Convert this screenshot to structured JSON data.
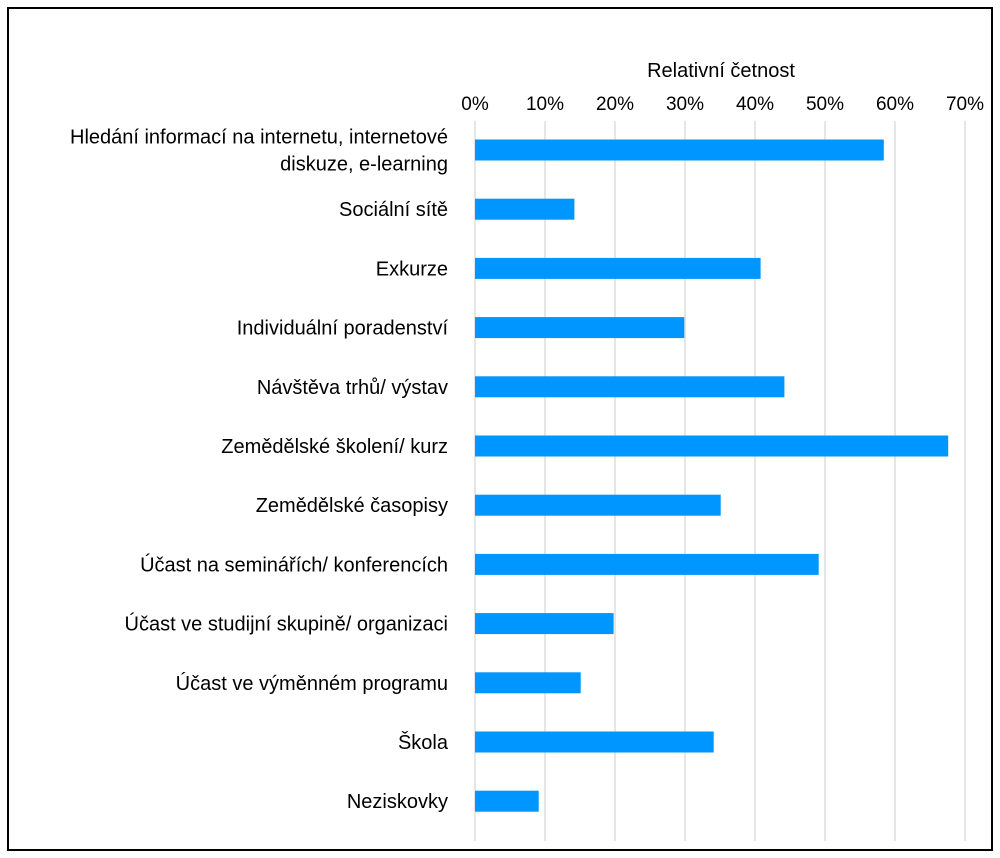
{
  "chart_data": {
    "type": "bar",
    "orientation": "horizontal",
    "title": "",
    "xlabel": "Relativní četnost",
    "ylabel": "",
    "xaxis_position": "top",
    "xlim": [
      0,
      70
    ],
    "x_ticks": [
      0,
      10,
      20,
      30,
      40,
      50,
      60,
      70
    ],
    "x_tick_labels": [
      "0%",
      "10%",
      "20%",
      "30%",
      "40%",
      "50%",
      "60%",
      "70%"
    ],
    "grid": true,
    "legend": "none",
    "bar_color": "#0096ff",
    "grid_color": "#d9d9d9",
    "categories": [
      [
        "Hledání informací na internetu, internetové",
        "diskuze, e-learning"
      ],
      [
        "Sociální sítě"
      ],
      [
        "Exkurze"
      ],
      [
        "Individuální poradenství"
      ],
      [
        "Návštěva trhů/ výstav"
      ],
      [
        "Zemědělské školení/ kurz"
      ],
      [
        "Zemědělské časopisy"
      ],
      [
        "Účast na seminářích/ konferencích"
      ],
      [
        "Účast ve studijní skupině/ organizaci"
      ],
      [
        "Účast ve výměnném programu"
      ],
      [
        "Škola"
      ],
      [
        "Neziskovky"
      ]
    ],
    "values": [
      58.4,
      14.2,
      40.8,
      29.9,
      44.2,
      67.6,
      35.1,
      49.1,
      19.8,
      15.1,
      34.1,
      9.1
    ]
  }
}
